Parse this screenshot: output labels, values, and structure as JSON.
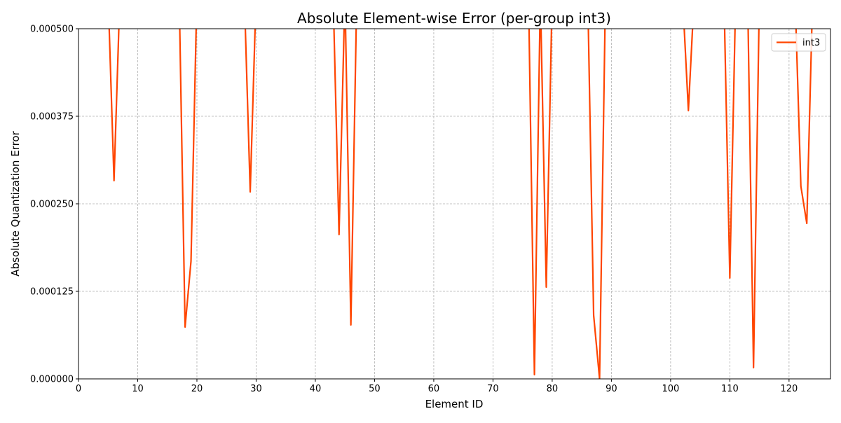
{
  "chart_data": {
    "type": "line",
    "title": "Absolute Element-wise Error (per-group int3)",
    "xlabel": "Element ID",
    "ylabel": "Absolute Quantization Error",
    "xlim": [
      0,
      127
    ],
    "ylim": [
      0,
      0.0005
    ],
    "x_ticks": [
      "0",
      "10",
      "20",
      "30",
      "40",
      "50",
      "60",
      "70",
      "80",
      "90",
      "100",
      "110",
      "120"
    ],
    "y_ticks": [
      "0.000000",
      "0.000125",
      "0.000250",
      "0.000375",
      "0.000500"
    ],
    "grid": true,
    "legend_position": "top-right",
    "series": [
      {
        "name": "int3",
        "color": "#ff4500",
        "points": [
          [
            5,
            0.00055
          ],
          [
            6,
            0.000283
          ],
          [
            7,
            0.00055
          ],
          [
            17,
            0.00055
          ],
          [
            18,
            7.4e-05
          ],
          [
            19,
            0.000168
          ],
          [
            20,
            0.00055
          ],
          [
            28,
            0.00055
          ],
          [
            29,
            0.000267
          ],
          [
            30,
            0.00055
          ],
          [
            43,
            0.00055
          ],
          [
            44,
            0.000206
          ],
          [
            45,
            0.00055
          ],
          [
            46,
            7.7e-05
          ],
          [
            47,
            0.00055
          ],
          [
            76,
            0.00055
          ],
          [
            77,
            6e-06
          ],
          [
            78,
            0.00055
          ],
          [
            79,
            0.000131
          ],
          [
            80,
            0.00055
          ],
          [
            86,
            0.00055
          ],
          [
            87,
            9.1e-05
          ],
          [
            88,
            0.0
          ],
          [
            89,
            0.00055
          ],
          [
            102,
            0.00055
          ],
          [
            103,
            0.000383
          ],
          [
            104,
            0.00055
          ],
          [
            109,
            0.00055
          ],
          [
            110,
            0.000144
          ],
          [
            111,
            0.00055
          ],
          [
            113,
            0.00055
          ],
          [
            114,
            1.6e-05
          ],
          [
            115,
            0.00055
          ],
          [
            121,
            0.00055
          ],
          [
            122,
            0.000275
          ],
          [
            123,
            0.000222
          ],
          [
            124,
            0.00055
          ]
        ]
      }
    ]
  }
}
